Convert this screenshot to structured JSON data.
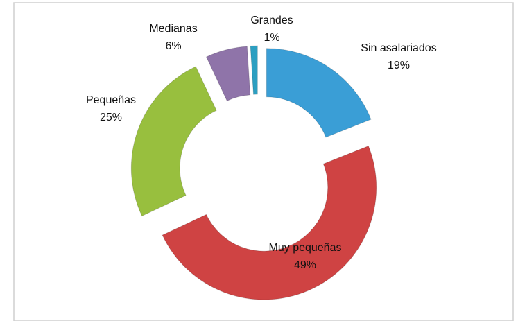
{
  "chart_data": {
    "type": "donut",
    "categories": [
      "Sin asalariados",
      "Muy pequeñas",
      "Pequeñas",
      "Medianas",
      "Grandes"
    ],
    "values": [
      19,
      49,
      25,
      6,
      1
    ],
    "value_labels": [
      "19%",
      "49%",
      "25%",
      "6%",
      "1%"
    ],
    "colors": [
      "#3a9ed6",
      "#cf4343",
      "#98bf3e",
      "#8f74a9",
      "#2c9fc1"
    ]
  }
}
